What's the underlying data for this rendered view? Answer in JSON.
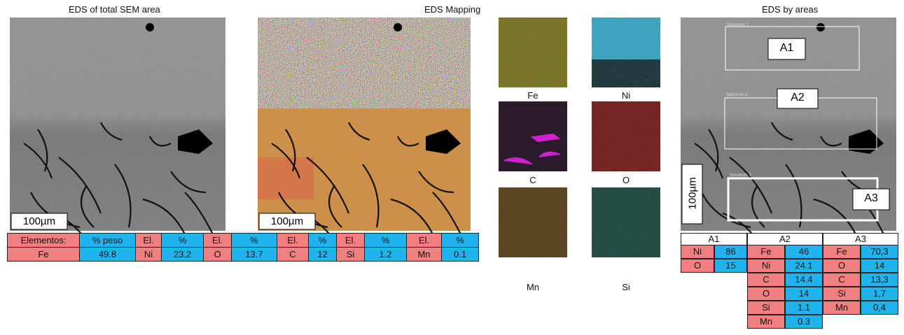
{
  "panels": {
    "sem": {
      "title": "EDS of total SEM area",
      "scale": "100µm"
    },
    "mapping": {
      "title": "EDS Mapping",
      "scale": "100µm",
      "maps": [
        "Fe",
        "Ni",
        "C",
        "O",
        "Mn",
        "Si"
      ]
    },
    "areas": {
      "title": "EDS by areas",
      "scale": "100µm",
      "spectra": [
        "Spectrum 1",
        "Spectrum 2",
        "Spectrum 3"
      ],
      "labels": [
        "A1",
        "A2",
        "A3"
      ]
    }
  },
  "total_table": {
    "header": [
      "Elementos:",
      "% peso",
      "El.",
      "%",
      "El.",
      "%",
      "El.",
      "%",
      "El.",
      "%",
      "El.",
      "%"
    ],
    "row": [
      "Fe",
      "49.8",
      "Ni",
      "23.2",
      "O",
      "13.7",
      "C",
      "12",
      "Si",
      "1.2",
      "Mn",
      "0.1"
    ]
  },
  "area_tables": [
    {
      "name": "A1",
      "rows": [
        [
          "Ni",
          "86"
        ],
        [
          "O",
          "15"
        ]
      ]
    },
    {
      "name": "A2",
      "rows": [
        [
          "Fe",
          "46"
        ],
        [
          "Ni",
          "24.1"
        ],
        [
          "C",
          "14.4"
        ],
        [
          "O",
          "14"
        ],
        [
          "Si",
          "1.1"
        ],
        [
          "Mn",
          "0.3"
        ]
      ]
    },
    {
      "name": "A3",
      "rows": [
        [
          "Fe",
          "70,3"
        ],
        [
          "O",
          "14"
        ],
        [
          "C",
          "13,3"
        ],
        [
          "Si",
          "1,7"
        ],
        [
          "Mn",
          "0,4"
        ]
      ]
    }
  ]
}
